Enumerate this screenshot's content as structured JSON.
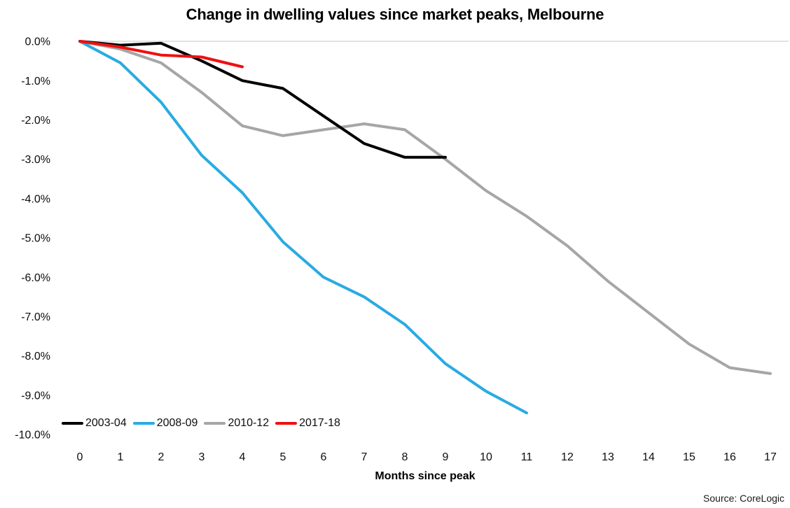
{
  "chart_data": {
    "type": "line",
    "title": "Change in dwelling values since market peaks, Melbourne",
    "xlabel": "Months since peak",
    "source": "Source: CoreLogic",
    "x_tick_labels": [
      "0",
      "1",
      "2",
      "3",
      "4",
      "5",
      "6",
      "7",
      "8",
      "9",
      "10",
      "11",
      "12",
      "13",
      "14",
      "15",
      "16",
      "17"
    ],
    "y_tick_labels": [
      "0.0%",
      "-1.0%",
      "-2.0%",
      "-3.0%",
      "-4.0%",
      "-5.0%",
      "-6.0%",
      "-7.0%",
      "-8.0%",
      "-9.0%",
      "-10.0%"
    ],
    "xlim": [
      0,
      17
    ],
    "ylim": [
      -10,
      0
    ],
    "grid": "zero-line-only",
    "gridline_color": "#d9d9d9",
    "legend_position": "bottom-left",
    "series": [
      {
        "name": "2003-04",
        "color": "#000000",
        "values": [
          0,
          -0.1,
          -0.05,
          -0.5,
          -1.0,
          -1.2,
          -1.9,
          -2.6,
          -2.95,
          -2.95
        ]
      },
      {
        "name": "2008-09",
        "color": "#29abe2",
        "values": [
          0,
          -0.55,
          -1.55,
          -2.9,
          -3.85,
          -5.1,
          -6.0,
          -6.5,
          -7.2,
          -8.2,
          -8.9,
          -9.45
        ]
      },
      {
        "name": "2010-12",
        "color": "#a6a6a6",
        "values": [
          0,
          -0.2,
          -0.55,
          -1.3,
          -2.15,
          -2.4,
          -2.25,
          -2.1,
          -2.25,
          -3.0,
          -3.8,
          -4.45,
          -5.2,
          -6.1,
          -6.9,
          -7.7,
          -8.3,
          -8.45
        ]
      },
      {
        "name": "2017-18",
        "color": "#ee1111",
        "values": [
          0,
          -0.15,
          -0.35,
          -0.4,
          -0.65
        ]
      }
    ]
  }
}
